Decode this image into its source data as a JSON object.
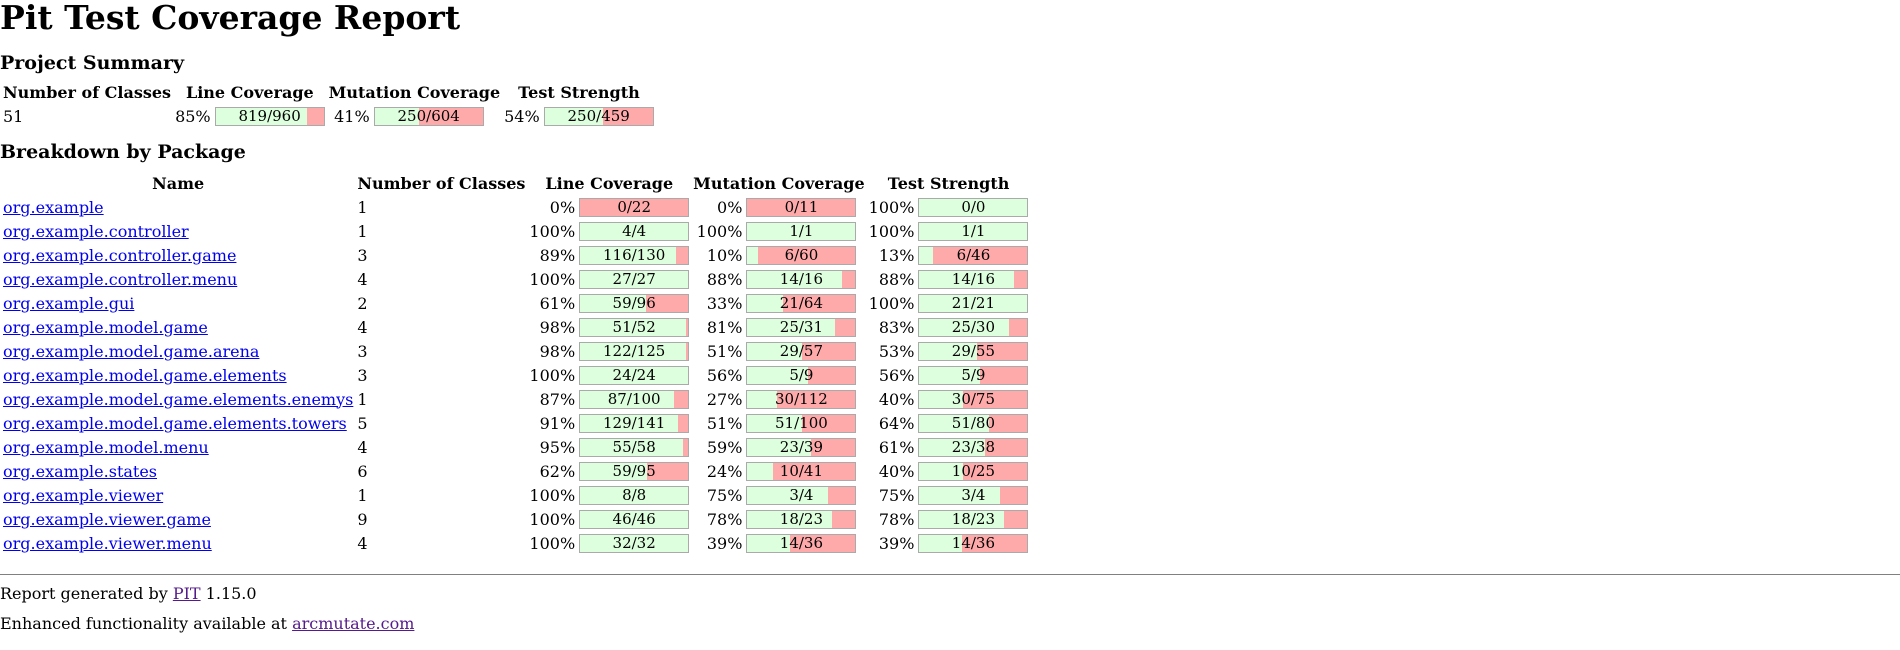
{
  "page_title": "Pit Test Coverage Report",
  "summary_heading": "Project Summary",
  "breakdown_heading": "Breakdown by Package",
  "summary": {
    "headers": {
      "classes": "Number of Classes",
      "line": "Line Coverage",
      "mutation": "Mutation Coverage",
      "strength": "Test Strength"
    },
    "classes": "51",
    "line": {
      "pct": "85%",
      "label": "819/960",
      "fraction": 0.85
    },
    "mutation": {
      "pct": "41%",
      "label": "250/604",
      "fraction": 0.41
    },
    "strength": {
      "pct": "54%",
      "label": "250/459",
      "fraction": 0.54
    }
  },
  "packages": {
    "headers": {
      "name": "Name",
      "classes": "Number of Classes",
      "line": "Line Coverage",
      "mutation": "Mutation Coverage",
      "strength": "Test Strength"
    },
    "rows": [
      {
        "name": "org.example",
        "classes": "1",
        "line": {
          "pct": "0%",
          "label": "0/22",
          "fraction": 0.0
        },
        "mutation": {
          "pct": "0%",
          "label": "0/11",
          "fraction": 0.0
        },
        "strength": {
          "pct": "100%",
          "label": "0/0",
          "fraction": 1.0
        }
      },
      {
        "name": "org.example.controller",
        "classes": "1",
        "line": {
          "pct": "100%",
          "label": "4/4",
          "fraction": 1.0
        },
        "mutation": {
          "pct": "100%",
          "label": "1/1",
          "fraction": 1.0
        },
        "strength": {
          "pct": "100%",
          "label": "1/1",
          "fraction": 1.0
        }
      },
      {
        "name": "org.example.controller.game",
        "classes": "3",
        "line": {
          "pct": "89%",
          "label": "116/130",
          "fraction": 0.89
        },
        "mutation": {
          "pct": "10%",
          "label": "6/60",
          "fraction": 0.1
        },
        "strength": {
          "pct": "13%",
          "label": "6/46",
          "fraction": 0.13
        }
      },
      {
        "name": "org.example.controller.menu",
        "classes": "4",
        "line": {
          "pct": "100%",
          "label": "27/27",
          "fraction": 1.0
        },
        "mutation": {
          "pct": "88%",
          "label": "14/16",
          "fraction": 0.88
        },
        "strength": {
          "pct": "88%",
          "label": "14/16",
          "fraction": 0.88
        }
      },
      {
        "name": "org.example.gui",
        "classes": "2",
        "line": {
          "pct": "61%",
          "label": "59/96",
          "fraction": 0.61
        },
        "mutation": {
          "pct": "33%",
          "label": "21/64",
          "fraction": 0.33
        },
        "strength": {
          "pct": "100%",
          "label": "21/21",
          "fraction": 1.0
        }
      },
      {
        "name": "org.example.model.game",
        "classes": "4",
        "line": {
          "pct": "98%",
          "label": "51/52",
          "fraction": 0.98
        },
        "mutation": {
          "pct": "81%",
          "label": "25/31",
          "fraction": 0.81
        },
        "strength": {
          "pct": "83%",
          "label": "25/30",
          "fraction": 0.83
        }
      },
      {
        "name": "org.example.model.game.arena",
        "classes": "3",
        "line": {
          "pct": "98%",
          "label": "122/125",
          "fraction": 0.98
        },
        "mutation": {
          "pct": "51%",
          "label": "29/57",
          "fraction": 0.51
        },
        "strength": {
          "pct": "53%",
          "label": "29/55",
          "fraction": 0.53
        }
      },
      {
        "name": "org.example.model.game.elements",
        "classes": "3",
        "line": {
          "pct": "100%",
          "label": "24/24",
          "fraction": 1.0
        },
        "mutation": {
          "pct": "56%",
          "label": "5/9",
          "fraction": 0.56
        },
        "strength": {
          "pct": "56%",
          "label": "5/9",
          "fraction": 0.56
        }
      },
      {
        "name": "org.example.model.game.elements.enemys",
        "classes": "1",
        "line": {
          "pct": "87%",
          "label": "87/100",
          "fraction": 0.87
        },
        "mutation": {
          "pct": "27%",
          "label": "30/112",
          "fraction": 0.27
        },
        "strength": {
          "pct": "40%",
          "label": "30/75",
          "fraction": 0.4
        }
      },
      {
        "name": "org.example.model.game.elements.towers",
        "classes": "5",
        "line": {
          "pct": "91%",
          "label": "129/141",
          "fraction": 0.91
        },
        "mutation": {
          "pct": "51%",
          "label": "51/100",
          "fraction": 0.51
        },
        "strength": {
          "pct": "64%",
          "label": "51/80",
          "fraction": 0.64
        }
      },
      {
        "name": "org.example.model.menu",
        "classes": "4",
        "line": {
          "pct": "95%",
          "label": "55/58",
          "fraction": 0.95
        },
        "mutation": {
          "pct": "59%",
          "label": "23/39",
          "fraction": 0.59
        },
        "strength": {
          "pct": "61%",
          "label": "23/38",
          "fraction": 0.61
        }
      },
      {
        "name": "org.example.states",
        "classes": "6",
        "line": {
          "pct": "62%",
          "label": "59/95",
          "fraction": 0.62
        },
        "mutation": {
          "pct": "24%",
          "label": "10/41",
          "fraction": 0.24
        },
        "strength": {
          "pct": "40%",
          "label": "10/25",
          "fraction": 0.4
        }
      },
      {
        "name": "org.example.viewer",
        "classes": "1",
        "line": {
          "pct": "100%",
          "label": "8/8",
          "fraction": 1.0
        },
        "mutation": {
          "pct": "75%",
          "label": "3/4",
          "fraction": 0.75
        },
        "strength": {
          "pct": "75%",
          "label": "3/4",
          "fraction": 0.75
        }
      },
      {
        "name": "org.example.viewer.game",
        "classes": "9",
        "line": {
          "pct": "100%",
          "label": "46/46",
          "fraction": 1.0
        },
        "mutation": {
          "pct": "78%",
          "label": "18/23",
          "fraction": 0.78
        },
        "strength": {
          "pct": "78%",
          "label": "18/23",
          "fraction": 0.78
        }
      },
      {
        "name": "org.example.viewer.menu",
        "classes": "4",
        "line": {
          "pct": "100%",
          "label": "32/32",
          "fraction": 1.0
        },
        "mutation": {
          "pct": "39%",
          "label": "14/36",
          "fraction": 0.39
        },
        "strength": {
          "pct": "39%",
          "label": "14/36",
          "fraction": 0.39
        }
      }
    ]
  },
  "footer": {
    "generated_prefix": "Report generated by ",
    "pit_link": "PIT",
    "version": " 1.15.0",
    "enhanced_prefix": "Enhanced functionality available at ",
    "arcmutate_link": "arcmutate.com"
  },
  "colors": {
    "covered": "#ddffdd",
    "uncovered": "#ffaaaa",
    "bar_border": "#aaaaaa",
    "link": "#0000ee",
    "visited_link": "#551a8b"
  }
}
